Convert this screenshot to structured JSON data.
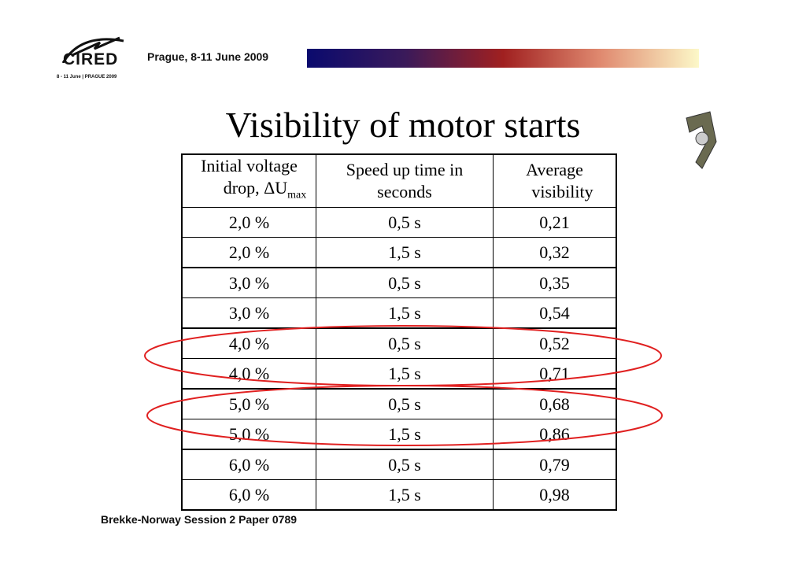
{
  "header": {
    "logo_text": "CIRED",
    "logo_subtitle": "8 - 11 June | PRAGUE 2009",
    "event": "Prague,  8-11 June 2009"
  },
  "title": "Visibility of motor starts",
  "table": {
    "headers": [
      {
        "line1": "Initial voltage",
        "line2": "drop, ΔU",
        "sub": "max"
      },
      {
        "line1": "Speed up time in",
        "line2": "seconds"
      },
      {
        "line1": "Average",
        "line2": "visibility"
      }
    ],
    "rows": [
      [
        "2,0 %",
        "0,5 s",
        "0,21"
      ],
      [
        "2,0 %",
        "1,5 s",
        "0,32"
      ],
      [
        "3,0 %",
        "0,5 s",
        "0,35"
      ],
      [
        "3,0 %",
        "1,5 s",
        "0,54"
      ],
      [
        "4,0 %",
        "0,5 s",
        "0,52"
      ],
      [
        "4,0 %",
        "1,5 s",
        "0,71"
      ],
      [
        "5,0 %",
        "0,5 s",
        "0,68"
      ],
      [
        "5,0 %",
        "1,5 s",
        "0,86"
      ],
      [
        "6,0 %",
        "0,5 s",
        "0,79"
      ],
      [
        "6,0 %",
        "1,5 s",
        "0,98"
      ]
    ]
  },
  "highlight_color": "#e02020",
  "footer": "Brekke-Norway Session 2 Paper 0789"
}
